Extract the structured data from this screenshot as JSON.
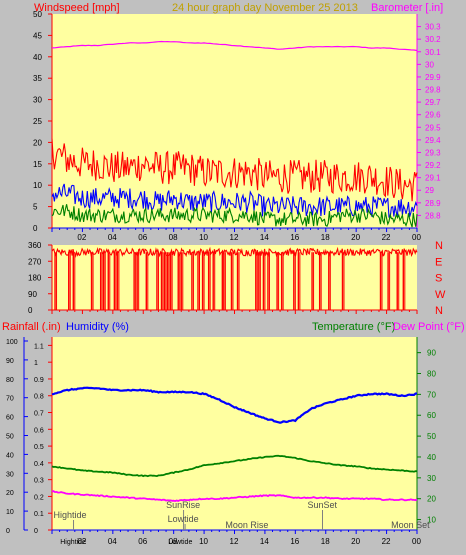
{
  "header": {
    "wind_label": "Windspeed [mph]",
    "title": "24 hour graph day   November 25 2013",
    "baro_label": "Barometer [.in]"
  },
  "lower_header": {
    "rain_label": "Rainfall (.in)",
    "humidity_label": "Humidity (%)",
    "temp_label": "Temperature (°F)",
    "dew_label": "Dew Point (°F)"
  },
  "colors": {
    "plot_bg": "#ffffa0",
    "page_bg": "#c0c0c0",
    "axis_red": "#ff0000",
    "baro": "#ff00ff",
    "wind_gust": "#ff0000",
    "wind_avg": "#0000ff",
    "wind_low": "#008000",
    "humidity": "#0000ff",
    "temperature": "#008000",
    "dewpoint": "#ff00ff",
    "direction": "#ff0000",
    "title": "#c0a000",
    "events": "#505050"
  },
  "x_ticks": [
    "02",
    "04",
    "06",
    "08",
    "10",
    "12",
    "14",
    "16",
    "18",
    "20",
    "22",
    "00"
  ],
  "chart_data": [
    {
      "type": "line",
      "name": "wind-baro",
      "title": "24 hour graph day   November 25 2013",
      "ylabel": "Windspeed [mph]",
      "y2label": "Barometer [.in]",
      "ylim": [
        0,
        50
      ],
      "y_ticks": [
        0,
        5,
        10,
        15,
        20,
        25,
        30,
        35,
        40,
        45,
        50
      ],
      "y2lim": [
        28.7,
        30.4
      ],
      "y2_ticks": [
        "28.8",
        "28.9",
        "29",
        "29.1",
        "29.2",
        "29.3",
        "29.4",
        "29.5",
        "29.6",
        "29.7",
        "29.8",
        "29.9",
        "30",
        "30.1",
        "30.2",
        "30.3"
      ],
      "x_hours": [
        0,
        1,
        2,
        3,
        4,
        5,
        6,
        7,
        8,
        9,
        10,
        11,
        12,
        13,
        14,
        15,
        16,
        17,
        18,
        19,
        20,
        21,
        22,
        23,
        24
      ],
      "series": [
        {
          "role": "barometer",
          "axis": "y2",
          "values": [
            30.13,
            30.14,
            30.15,
            30.15,
            30.16,
            30.17,
            30.17,
            30.18,
            30.18,
            30.17,
            30.17,
            30.16,
            30.15,
            30.14,
            30.13,
            30.12,
            30.13,
            30.14,
            30.14,
            30.14,
            30.14,
            30.13,
            30.13,
            30.12,
            30.11
          ]
        },
        {
          "role": "gust",
          "axis": "y",
          "values": [
            18,
            16,
            15,
            15,
            14,
            14,
            15,
            14,
            14,
            14,
            13,
            13,
            13,
            13,
            12,
            12,
            12,
            12,
            12,
            12,
            12,
            12,
            11,
            10,
            10
          ]
        },
        {
          "role": "average",
          "axis": "y",
          "values": [
            8,
            8,
            7,
            7,
            7,
            7,
            7,
            6,
            7,
            6,
            6,
            6,
            6,
            6,
            5,
            5,
            5,
            5,
            5,
            5,
            5,
            5,
            5,
            5,
            5
          ]
        },
        {
          "role": "low",
          "axis": "y",
          "values": [
            4,
            4,
            3,
            3,
            3,
            3,
            3,
            3,
            3,
            3,
            3,
            3,
            3,
            3,
            2,
            2,
            2,
            2,
            2,
            3,
            3,
            3,
            2,
            2,
            2
          ]
        }
      ]
    },
    {
      "type": "bar",
      "name": "wind-direction",
      "y_ticks": [
        0,
        90,
        180,
        270,
        360
      ],
      "y2_ticks": [
        "N",
        "W",
        "S",
        "E",
        "N"
      ],
      "ylim": [
        0,
        360
      ],
      "baseline": 320,
      "dropouts_hours": [
        0.2,
        1.1,
        1.4,
        2.6,
        3.2,
        3.4,
        3.7,
        4.1,
        4.3,
        5.4,
        5.6,
        6.2,
        6.9,
        7.2,
        7.4,
        7.6,
        7.8,
        8.3,
        8.5,
        9.2,
        9.6,
        9.9,
        10.3,
        10.6,
        11.2,
        11.3,
        11.8,
        12.2,
        13.4,
        13.6,
        13.9,
        14.2,
        14.8,
        15.1,
        15.9,
        16.2,
        17.1,
        17.6,
        18.2,
        19.1,
        21.6,
        22.1,
        22.7,
        23.1
      ]
    },
    {
      "type": "line",
      "name": "rain-humidity-temperature",
      "y_left_outer_ticks": [
        0,
        10,
        20,
        30,
        40,
        50,
        60,
        70,
        80,
        90,
        100
      ],
      "y_left_inner_ticks": [
        "0",
        "0.1",
        "0.2",
        "0.3",
        "0.4",
        "0.5",
        "0.6",
        "0.7",
        "0.8",
        "0.9",
        "1",
        "1.1"
      ],
      "y_right_ticks": [
        10,
        20,
        30,
        40,
        50,
        60,
        70,
        80,
        90
      ],
      "humidity_ylim": [
        0,
        100
      ],
      "temperature_ylim": [
        5,
        97.5
      ],
      "x_hours": [
        0,
        1,
        2,
        3,
        4,
        5,
        6,
        7,
        8,
        9,
        10,
        11,
        12,
        13,
        14,
        15,
        16,
        17,
        18,
        19,
        20,
        21,
        22,
        23,
        24
      ],
      "series": [
        {
          "role": "humidity",
          "values": [
            72,
            74,
            75,
            75,
            74,
            74,
            74,
            73,
            73,
            73,
            72,
            69,
            65,
            62,
            59,
            57,
            58,
            64,
            67,
            69,
            71,
            72,
            72,
            71,
            72
          ]
        },
        {
          "role": "temperature",
          "values": [
            35.5,
            34.5,
            33.5,
            33,
            32.5,
            31.5,
            31,
            31,
            32.5,
            34,
            36,
            37,
            38,
            39,
            40,
            40.5,
            39.5,
            38,
            37,
            36,
            35.5,
            34.5,
            34,
            33.5,
            33
          ]
        },
        {
          "role": "dewpoint",
          "values": [
            23.5,
            22.5,
            22,
            21.5,
            21,
            20.5,
            20,
            19.5,
            19,
            19.5,
            20,
            20,
            20.5,
            21,
            21.5,
            21.5,
            20.5,
            20.5,
            20.5,
            20,
            20,
            20,
            19.5,
            19.5,
            19.5
          ]
        },
        {
          "role": "rainfall",
          "values": [
            0,
            0,
            0,
            0,
            0,
            0,
            0,
            0,
            0,
            0,
            0,
            0,
            0,
            0,
            0,
            0,
            0,
            0,
            0,
            0,
            0,
            0,
            0,
            0,
            0
          ]
        }
      ],
      "events": [
        {
          "label": "Hightide",
          "hour": 0.1,
          "row": 1
        },
        {
          "label": "SunRise",
          "hour": 7.5,
          "row": 0
        },
        {
          "label": "Lowtide",
          "hour": 7.6,
          "row": 2
        },
        {
          "label": "Moon Rise",
          "hour": 11.4,
          "row": 3
        },
        {
          "label": "SunSet",
          "hour": 16.8,
          "row": 0
        },
        {
          "label": "Moon Set",
          "hour": 22.3,
          "row": 3
        }
      ],
      "bottom_labels": [
        {
          "label": "Hightide",
          "hour": 1.2
        },
        {
          "label": "Lowtide",
          "hour": 8.3
        }
      ]
    }
  ]
}
